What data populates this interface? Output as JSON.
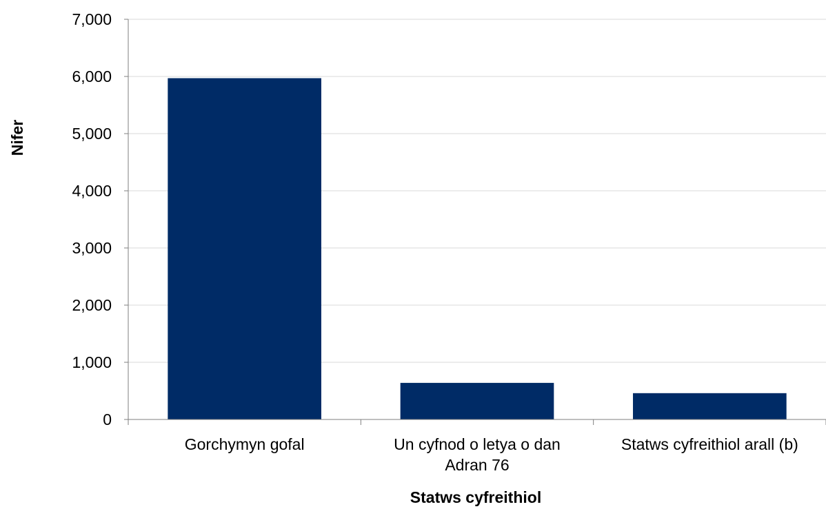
{
  "chart_data": {
    "type": "bar",
    "categories": [
      "Gorchymyn gofal",
      "Un cyfnod o letya o dan Adran 76",
      "Statws cyfreithiol arall (b)"
    ],
    "category_label_lines": [
      [
        "Gorchymyn gofal"
      ],
      [
        "Un cyfnod o letya o dan",
        "Adran 76"
      ],
      [
        "Statws cyfreithiol arall (b)"
      ]
    ],
    "values": [
      5970,
      640,
      460
    ],
    "xlabel": "Statws cyfreithiol",
    "ylabel": "Nifer",
    "ylim": [
      0,
      7000
    ],
    "yticks": [
      0,
      1000,
      2000,
      3000,
      4000,
      5000,
      6000,
      7000
    ],
    "ytick_labels": [
      "0",
      "1,000",
      "2,000",
      "3,000",
      "4,000",
      "5,000",
      "6,000",
      "7,000"
    ],
    "grid": true,
    "legend": "none",
    "colors": {
      "bar": "#002B66",
      "grid": "#D9D9D9",
      "axis": "#7F7F7F"
    }
  }
}
